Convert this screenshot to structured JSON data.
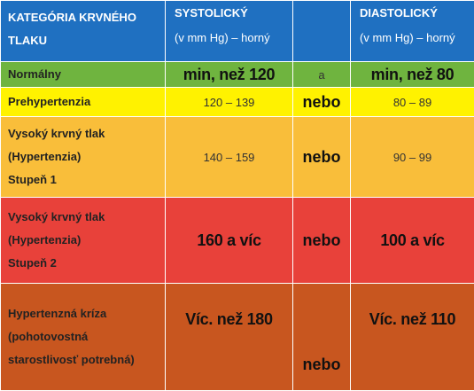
{
  "header": {
    "category": "KATEGÓRIA KRVNÉHO TLAKU",
    "systolic_title": "SYSTOLICKÝ",
    "systolic_unit": "(v mm Hg) – horný",
    "diastolic_title": "DIASTOLICKÝ",
    "diastolic_unit": "(v mm Hg) – horný"
  },
  "rows": [
    {
      "category_lines": [
        "Normálny"
      ],
      "systolic": "min, než 120",
      "conjunction": "a",
      "diastolic": "min, než 80",
      "color": "#6fb43f"
    },
    {
      "category_lines": [
        "Prehypertenzia"
      ],
      "systolic": "120 – 139",
      "conjunction": "nebo",
      "diastolic": "80 – 89",
      "color": "#fff200"
    },
    {
      "category_lines": [
        "Vysoký krvný tlak",
        "(Hypertenzia)",
        "Stupeň 1"
      ],
      "systolic": "140 – 159",
      "conjunction": "nebo",
      "diastolic": "90 – 99",
      "color": "#f9be3a"
    },
    {
      "category_lines": [
        "Vysoký krvný tlak",
        "(Hypertenzia)",
        "Stupeň 2"
      ],
      "systolic": "160 a víc",
      "conjunction": "nebo",
      "diastolic": "100 a víc",
      "color": "#e8413a"
    },
    {
      "category_lines": [
        "Hypertenzná kríza",
        "(pohotovostná",
        "starostlivosť potrebná)"
      ],
      "systolic": "Víc. než 180",
      "conjunction": "nebo",
      "diastolic": "Víc. než 110",
      "color": "#c8561f"
    }
  ],
  "header_color": "#1f70c1"
}
